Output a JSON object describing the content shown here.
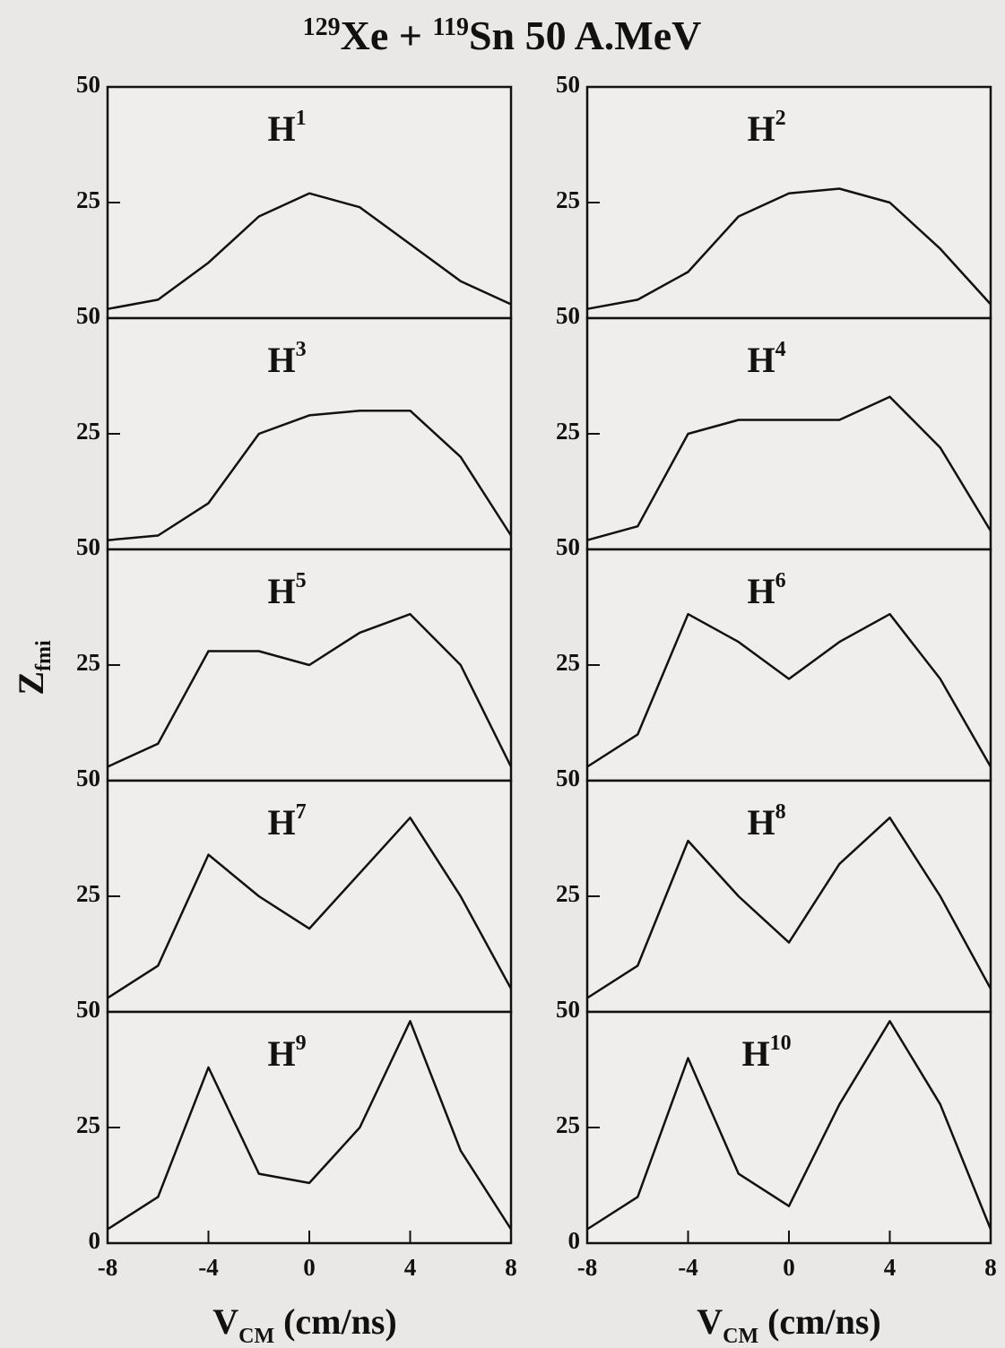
{
  "title": {
    "iso1": "129",
    "el1": "Xe + ",
    "iso2": "119",
    "rest": "Sn 50 A.MeV"
  },
  "xlabel": {
    "base": "V",
    "sub": "CM",
    "rest": " (cm/ns)"
  },
  "ylabel": {
    "base": "Z",
    "sub": "fmi"
  },
  "chart_data": [
    {
      "type": "line",
      "title": {
        "base": "H",
        "sup": "1"
      },
      "x": [
        -8,
        -6,
        -4,
        -2,
        0,
        2,
        4,
        6,
        8
      ],
      "values": [
        2,
        4,
        12,
        22,
        27,
        24,
        16,
        8,
        3
      ],
      "xlim": [
        -8,
        8
      ],
      "ylim": [
        0,
        50
      ],
      "yticks": [
        25,
        50
      ]
    },
    {
      "type": "line",
      "title": {
        "base": "H",
        "sup": "2"
      },
      "x": [
        -8,
        -6,
        -4,
        -2,
        0,
        2,
        4,
        6,
        8
      ],
      "values": [
        2,
        4,
        10,
        22,
        27,
        28,
        25,
        15,
        3
      ],
      "xlim": [
        -8,
        8
      ],
      "ylim": [
        0,
        50
      ],
      "yticks": [
        25,
        50
      ]
    },
    {
      "type": "line",
      "title": {
        "base": "H",
        "sup": "3"
      },
      "x": [
        -8,
        -6,
        -4,
        -2,
        0,
        2,
        4,
        6,
        8
      ],
      "values": [
        2,
        3,
        10,
        25,
        29,
        30,
        30,
        20,
        3
      ],
      "xlim": [
        -8,
        8
      ],
      "ylim": [
        0,
        50
      ],
      "yticks": [
        25,
        50
      ]
    },
    {
      "type": "line",
      "title": {
        "base": "H",
        "sup": "4"
      },
      "x": [
        -8,
        -6,
        -4,
        -2,
        0,
        2,
        4,
        6,
        8
      ],
      "values": [
        2,
        5,
        25,
        28,
        28,
        28,
        33,
        22,
        4
      ],
      "xlim": [
        -8,
        8
      ],
      "ylim": [
        0,
        50
      ],
      "yticks": [
        25,
        50
      ]
    },
    {
      "type": "line",
      "title": {
        "base": "H",
        "sup": "5"
      },
      "x": [
        -8,
        -6,
        -4,
        -2,
        0,
        2,
        4,
        6,
        8
      ],
      "values": [
        3,
        8,
        28,
        28,
        25,
        32,
        36,
        25,
        3
      ],
      "xlim": [
        -8,
        8
      ],
      "ylim": [
        0,
        50
      ],
      "yticks": [
        25,
        50
      ]
    },
    {
      "type": "line",
      "title": {
        "base": "H",
        "sup": "6"
      },
      "x": [
        -8,
        -6,
        -4,
        -2,
        0,
        2,
        4,
        6,
        8
      ],
      "values": [
        3,
        10,
        36,
        30,
        22,
        30,
        36,
        22,
        3
      ],
      "xlim": [
        -8,
        8
      ],
      "ylim": [
        0,
        50
      ],
      "yticks": [
        25,
        50
      ]
    },
    {
      "type": "line",
      "title": {
        "base": "H",
        "sup": "7"
      },
      "x": [
        -8,
        -6,
        -4,
        -2,
        0,
        2,
        4,
        6,
        8
      ],
      "values": [
        3,
        10,
        34,
        25,
        18,
        30,
        42,
        25,
        5
      ],
      "xlim": [
        -8,
        8
      ],
      "ylim": [
        0,
        50
      ],
      "yticks": [
        25,
        50
      ]
    },
    {
      "type": "line",
      "title": {
        "base": "H",
        "sup": "8"
      },
      "x": [
        -8,
        -6,
        -4,
        -2,
        0,
        2,
        4,
        6,
        8
      ],
      "values": [
        3,
        10,
        37,
        25,
        15,
        32,
        42,
        25,
        5
      ],
      "xlim": [
        -8,
        8
      ],
      "ylim": [
        0,
        50
      ],
      "yticks": [
        25,
        50
      ]
    },
    {
      "type": "line",
      "title": {
        "base": "H",
        "sup": "9"
      },
      "x": [
        -8,
        -6,
        -4,
        -2,
        0,
        2,
        4,
        6,
        8
      ],
      "values": [
        3,
        10,
        38,
        15,
        13,
        25,
        48,
        20,
        3
      ],
      "xlim": [
        -8,
        8
      ],
      "ylim": [
        0,
        50
      ],
      "yticks": [
        0,
        25,
        50
      ],
      "xticks": [
        -8,
        -4,
        0,
        4,
        8
      ]
    },
    {
      "type": "line",
      "title": {
        "base": "H",
        "sup": "10"
      },
      "x": [
        -8,
        -6,
        -4,
        -2,
        0,
        2,
        4,
        6,
        8
      ],
      "values": [
        3,
        10,
        40,
        15,
        8,
        30,
        48,
        30,
        3
      ],
      "xlim": [
        -8,
        8
      ],
      "ylim": [
        0,
        50
      ],
      "yticks": [
        0,
        25,
        50
      ],
      "xticks": [
        -8,
        -4,
        0,
        4,
        8
      ]
    }
  ]
}
